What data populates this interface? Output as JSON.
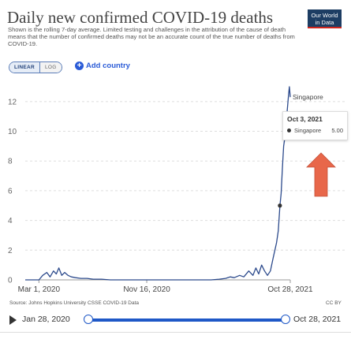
{
  "header": {
    "title": "Daily new confirmed COVID-19 deaths",
    "subtitle": "Shown is the rolling 7-day average. Limited testing and challenges in the attribution of the cause of death means that the number of confirmed deaths may not be an accurate count of the true number of deaths from COVID-19.",
    "logo_line1": "Our World",
    "logo_line2": "in Data"
  },
  "controls": {
    "linear_label": "LINEAR",
    "log_label": "LOG",
    "add_country_label": "Add country"
  },
  "tooltip": {
    "date": "Oct 3, 2021",
    "series": "Singapore",
    "value": "5.00"
  },
  "footer": {
    "source": "Source: Johns Hopkins University CSSE COVID-19 Data",
    "license": "CC BY"
  },
  "timeline": {
    "start": "Jan 28, 2020",
    "end": "Oct 28, 2021"
  },
  "colors": {
    "series": "#2c4a8c",
    "marker": "#333333",
    "arrow": "#e8674a",
    "grid": "#dddddd",
    "brand_blue": "#1d3d63",
    "brand_red": "#ce261e"
  },
  "chart_data": {
    "type": "line",
    "title": "Daily new confirmed COVID-19 deaths",
    "xlabel": "",
    "ylabel": "",
    "x_range": [
      "2020-01-28",
      "2021-10-28"
    ],
    "ylim": [
      0,
      13
    ],
    "yticks": [
      0,
      2,
      4,
      6,
      8,
      10,
      12
    ],
    "xtick_labels": [
      "Mar 1, 2020",
      "Nov 16, 2020",
      "Oct 28, 2021"
    ],
    "grid": true,
    "series": [
      {
        "name": "Singapore",
        "x": [
          "2020-01-28",
          "2020-03-01",
          "2020-03-10",
          "2020-03-20",
          "2020-03-28",
          "2020-04-05",
          "2020-04-12",
          "2020-04-18",
          "2020-04-25",
          "2020-05-02",
          "2020-05-10",
          "2020-05-18",
          "2020-05-28",
          "2020-06-10",
          "2020-06-25",
          "2020-07-10",
          "2020-07-30",
          "2020-08-20",
          "2020-09-15",
          "2020-10-15",
          "2020-11-16",
          "2020-12-20",
          "2021-01-20",
          "2021-02-20",
          "2021-03-20",
          "2021-04-20",
          "2021-05-10",
          "2021-05-25",
          "2021-06-05",
          "2021-06-15",
          "2021-06-28",
          "2021-07-08",
          "2021-07-20",
          "2021-07-30",
          "2021-08-06",
          "2021-08-13",
          "2021-08-20",
          "2021-08-27",
          "2021-09-03",
          "2021-09-10",
          "2021-09-17",
          "2021-09-21",
          "2021-09-25",
          "2021-09-29",
          "2021-10-03",
          "2021-10-06",
          "2021-10-09",
          "2021-10-12",
          "2021-10-15",
          "2021-10-18",
          "2021-10-20",
          "2021-10-22",
          "2021-10-24",
          "2021-10-26",
          "2021-10-28"
        ],
        "y": [
          0,
          0,
          0.3,
          0.5,
          0.2,
          0.6,
          0.4,
          0.8,
          0.3,
          0.5,
          0.3,
          0.2,
          0.15,
          0.1,
          0.1,
          0.05,
          0.05,
          0,
          0,
          0,
          0,
          0,
          0,
          0,
          0,
          0,
          0.05,
          0.1,
          0.2,
          0.15,
          0.3,
          0.2,
          0.6,
          0.3,
          0.8,
          0.4,
          1.0,
          0.6,
          0.3,
          0.6,
          1.5,
          2.0,
          2.5,
          3.3,
          5.0,
          5.8,
          7.5,
          9.0,
          9.6,
          10.5,
          11.2,
          11.8,
          12.5,
          13.0,
          12.3
        ]
      }
    ],
    "highlight": {
      "x": "2021-10-03",
      "y": 5.0
    }
  }
}
